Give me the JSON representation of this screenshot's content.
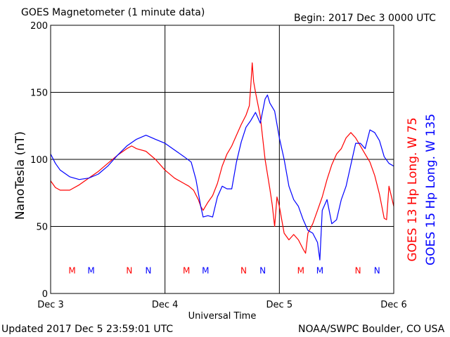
{
  "header": {
    "title": "GOES Magnetometer (1 minute data)",
    "begin": "Begin:  2017 Dec 3 0000 UTC"
  },
  "footer": {
    "updated": "Updated 2017 Dec  5 23:59:01 UTC",
    "source": "NOAA/SWPC Boulder, CO USA"
  },
  "colors": {
    "goes13": "#ff0000",
    "goes15": "#0000ff",
    "axes": "#000000"
  },
  "chart_data": {
    "type": "line",
    "title": "GOES Magnetometer (1 minute data)",
    "xlabel": "Universal Time",
    "ylabel": "NanoTesla (nT)",
    "xlim": [
      0,
      72
    ],
    "ylim": [
      0,
      200
    ],
    "x_tick_labels": [
      {
        "x": 0,
        "label": "Dec 3"
      },
      {
        "x": 24,
        "label": "Dec 4"
      },
      {
        "x": 48,
        "label": "Dec 5"
      },
      {
        "x": 72,
        "label": "Dec 6"
      }
    ],
    "y_ticks": [
      0,
      50,
      100,
      150,
      200
    ],
    "grid": true,
    "legend": "right",
    "markers": [
      {
        "x": 4.5,
        "label": "M",
        "series": "GOES 13 Hp Long. W 75"
      },
      {
        "x": 8.5,
        "label": "M",
        "series": "GOES 15 Hp Long. W 135"
      },
      {
        "x": 16.5,
        "label": "N",
        "series": "GOES 13 Hp Long. W 75"
      },
      {
        "x": 20.5,
        "label": "N",
        "series": "GOES 15 Hp Long. W 135"
      },
      {
        "x": 28.5,
        "label": "M",
        "series": "GOES 13 Hp Long. W 75"
      },
      {
        "x": 32.5,
        "label": "M",
        "series": "GOES 15 Hp Long. W 135"
      },
      {
        "x": 40.5,
        "label": "N",
        "series": "GOES 13 Hp Long. W 75"
      },
      {
        "x": 44.5,
        "label": "N",
        "series": "GOES 15 Hp Long. W 135"
      },
      {
        "x": 52.5,
        "label": "M",
        "series": "GOES 13 Hp Long. W 75"
      },
      {
        "x": 56.5,
        "label": "M",
        "series": "GOES 15 Hp Long. W 135"
      },
      {
        "x": 64.5,
        "label": "N",
        "series": "GOES 13 Hp Long. W 75"
      },
      {
        "x": 68.5,
        "label": "N",
        "series": "GOES 15 Hp Long. W 135"
      }
    ],
    "series": [
      {
        "name": "GOES 13 Hp Long. W 75",
        "color": "#ff0000",
        "points": [
          [
            0,
            84
          ],
          [
            1,
            79
          ],
          [
            2,
            77
          ],
          [
            4,
            77
          ],
          [
            6,
            81
          ],
          [
            8,
            86
          ],
          [
            10,
            91
          ],
          [
            12,
            97
          ],
          [
            14,
            103
          ],
          [
            16,
            108
          ],
          [
            17,
            110
          ],
          [
            18,
            108
          ],
          [
            20,
            106
          ],
          [
            22,
            100
          ],
          [
            24,
            92
          ],
          [
            26,
            86
          ],
          [
            28,
            82
          ],
          [
            29,
            80
          ],
          [
            30,
            77
          ],
          [
            31,
            70
          ],
          [
            31.5,
            65
          ],
          [
            32,
            62
          ],
          [
            33,
            68
          ],
          [
            34,
            73
          ],
          [
            35,
            82
          ],
          [
            36,
            95
          ],
          [
            37,
            104
          ],
          [
            38,
            110
          ],
          [
            39,
            118
          ],
          [
            40,
            126
          ],
          [
            41,
            133
          ],
          [
            41.7,
            140
          ],
          [
            42,
            155
          ],
          [
            42.3,
            172
          ],
          [
            42.6,
            158
          ],
          [
            43,
            150
          ],
          [
            44,
            132
          ],
          [
            45,
            100
          ],
          [
            46,
            78
          ],
          [
            46.5,
            66
          ],
          [
            47,
            50
          ],
          [
            47.5,
            72
          ],
          [
            48,
            65
          ],
          [
            49,
            45
          ],
          [
            50,
            40
          ],
          [
            51,
            44
          ],
          [
            52,
            40
          ],
          [
            53,
            33
          ],
          [
            53.5,
            30
          ],
          [
            54,
            45
          ],
          [
            55,
            52
          ],
          [
            56,
            62
          ],
          [
            57,
            72
          ],
          [
            58,
            85
          ],
          [
            59,
            96
          ],
          [
            60,
            104
          ],
          [
            61,
            108
          ],
          [
            62,
            116
          ],
          [
            63,
            120
          ],
          [
            64,
            116
          ],
          [
            65,
            110
          ],
          [
            66,
            104
          ],
          [
            67,
            98
          ],
          [
            68,
            88
          ],
          [
            69,
            74
          ],
          [
            70,
            56
          ],
          [
            70.5,
            55
          ],
          [
            71,
            80
          ],
          [
            72,
            65
          ]
        ]
      },
      {
        "name": "GOES 15 Hp Long. W 135",
        "color": "#0000ff",
        "points": [
          [
            0,
            104
          ],
          [
            1,
            97
          ],
          [
            2,
            92
          ],
          [
            4,
            87
          ],
          [
            6,
            85
          ],
          [
            8,
            86
          ],
          [
            10,
            89
          ],
          [
            12,
            95
          ],
          [
            14,
            103
          ],
          [
            16,
            110
          ],
          [
            18,
            115
          ],
          [
            20,
            118
          ],
          [
            22,
            115
          ],
          [
            24,
            112
          ],
          [
            26,
            107
          ],
          [
            28,
            102
          ],
          [
            29.5,
            98
          ],
          [
            30.5,
            85
          ],
          [
            31.5,
            65
          ],
          [
            32,
            57
          ],
          [
            33,
            58
          ],
          [
            34,
            57
          ],
          [
            35,
            72
          ],
          [
            36,
            80
          ],
          [
            37,
            78
          ],
          [
            38,
            78
          ],
          [
            39,
            98
          ],
          [
            40,
            113
          ],
          [
            41,
            124
          ],
          [
            42,
            129
          ],
          [
            43,
            135
          ],
          [
            44,
            127
          ],
          [
            45,
            145
          ],
          [
            45.5,
            148
          ],
          [
            46,
            142
          ],
          [
            47,
            136
          ],
          [
            48,
            116
          ],
          [
            49,
            100
          ],
          [
            50,
            80
          ],
          [
            51,
            70
          ],
          [
            52,
            65
          ],
          [
            53,
            55
          ],
          [
            54,
            47
          ],
          [
            55,
            45
          ],
          [
            56,
            38
          ],
          [
            56.5,
            25
          ],
          [
            57,
            62
          ],
          [
            58,
            70
          ],
          [
            59,
            52
          ],
          [
            60,
            55
          ],
          [
            61,
            70
          ],
          [
            62,
            80
          ],
          [
            63,
            96
          ],
          [
            64,
            112
          ],
          [
            65,
            112
          ],
          [
            66,
            108
          ],
          [
            67,
            122
          ],
          [
            68,
            120
          ],
          [
            69,
            114
          ],
          [
            70,
            102
          ],
          [
            71,
            97
          ],
          [
            72,
            95
          ]
        ]
      }
    ]
  }
}
